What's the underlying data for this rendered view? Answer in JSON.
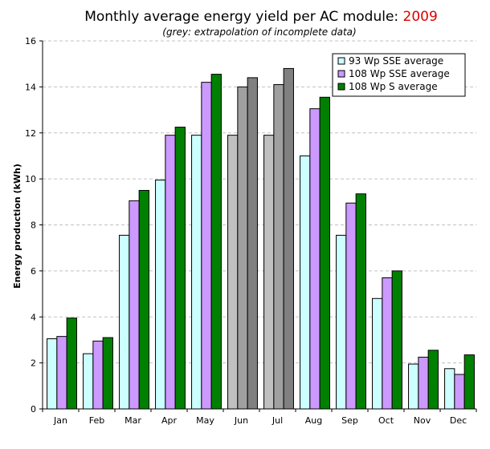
{
  "chart_data": {
    "type": "bar",
    "title": "Monthly average energy yield per AC module:",
    "title_highlight": "2009",
    "subtitle": "(grey: extrapolation of incomplete data)",
    "xlabel": "",
    "ylabel": "Energy production (kWh)",
    "ylim": [
      0,
      16
    ],
    "yticks": [
      0,
      2,
      4,
      6,
      8,
      10,
      12,
      14,
      16
    ],
    "grid": true,
    "legend_position": "top-right",
    "categories": [
      "Jan",
      "Feb",
      "Mar",
      "Apr",
      "May",
      "Jun",
      "Jul",
      "Aug",
      "Sep",
      "Oct",
      "Nov",
      "Dec"
    ],
    "extrapolated_categories": [
      "Jun",
      "Jul"
    ],
    "extrapolated_colors": [
      "#c0c0c0",
      "#a0a0a0",
      "#808080"
    ],
    "series": [
      {
        "name": "93 Wp SSE average",
        "color": "#ccffff",
        "values": [
          3.05,
          2.4,
          7.55,
          9.95,
          11.9,
          11.9,
          11.9,
          11.0,
          7.55,
          4.8,
          1.95,
          1.75
        ]
      },
      {
        "name": "108 Wp SSE average",
        "color": "#cc99ff",
        "values": [
          3.15,
          2.95,
          9.05,
          11.9,
          14.2,
          14.0,
          14.1,
          13.05,
          8.95,
          5.7,
          2.25,
          1.5
        ]
      },
      {
        "name": "108 Wp S average",
        "color": "#008000",
        "values": [
          3.95,
          3.1,
          9.5,
          12.25,
          14.55,
          14.4,
          14.8,
          13.55,
          9.35,
          6.0,
          2.55,
          2.35
        ]
      }
    ]
  }
}
